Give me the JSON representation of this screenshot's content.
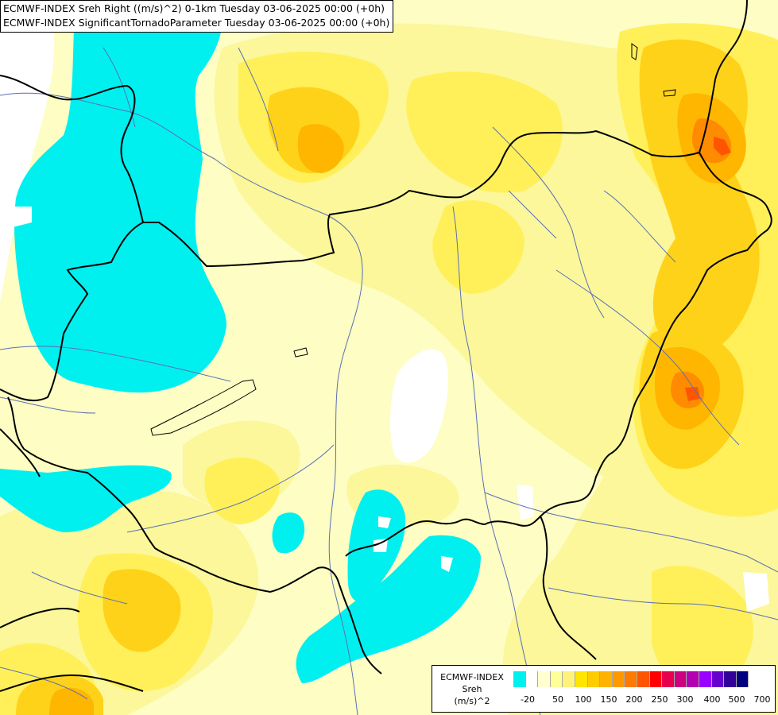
{
  "header": {
    "line1": "ECMWF-INDEX Sreh Right ((m/s)^2) 0-1km Tuesday 03-06-2025 00:00 (+0h)",
    "line2": "ECMWF-INDEX SignificantTornadoParameter Tuesday 03-06-2025 00:00 (+0h)"
  },
  "legend": {
    "source": "ECMWF-INDEX",
    "parameter": "Sreh",
    "unit": "(m/s)^2",
    "colors": [
      "#00f0f0",
      "#ffffff",
      "#ffffd0",
      "#ffff99",
      "#fff27a",
      "#ffe600",
      "#ffcc00",
      "#ffb300",
      "#ff9900",
      "#ff7a00",
      "#ff5500",
      "#ff0000",
      "#e6004d",
      "#cc0080",
      "#b300b3",
      "#9900ff",
      "#6600cc",
      "#330099",
      "#000080"
    ],
    "tick_labels": [
      "-20",
      "50",
      "100",
      "150",
      "200",
      "250",
      "300",
      "400",
      "500",
      "700"
    ]
  }
}
